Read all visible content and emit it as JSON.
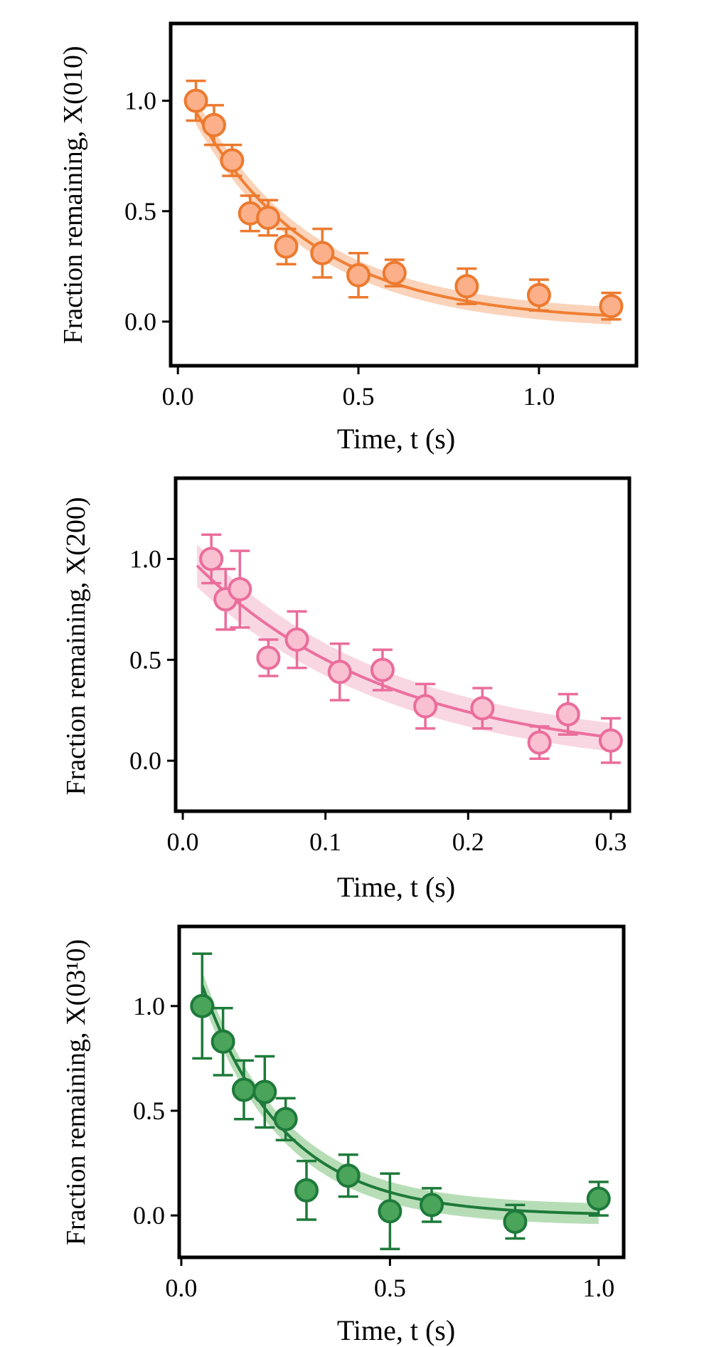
{
  "chart_data": [
    {
      "type": "scatter",
      "xlabel": "Time, t (s)",
      "ylabel": "Fraction remaining, X(010)",
      "xlim": [
        -0.02,
        1.27
      ],
      "ylim": [
        -0.2,
        1.35
      ],
      "xticks": [
        0.0,
        0.5,
        1.0
      ],
      "xtick_labels": [
        "0.0",
        "0.5",
        "1.0"
      ],
      "yticks": [
        0.0,
        0.5,
        1.0
      ],
      "ytick_labels": [
        "0.0",
        "0.5",
        "1.0"
      ],
      "grid": false,
      "colors": {
        "line": "#f07f34",
        "marker_fill": "#fbb08a",
        "marker_edge": "#ec7a2f",
        "band": "#f8c4a3"
      },
      "points": [
        {
          "x": 0.05,
          "y": 1.0,
          "err": 0.09
        },
        {
          "x": 0.1,
          "y": 0.89,
          "err": 0.09
        },
        {
          "x": 0.15,
          "y": 0.73,
          "err": 0.07
        },
        {
          "x": 0.2,
          "y": 0.49,
          "err": 0.08
        },
        {
          "x": 0.25,
          "y": 0.47,
          "err": 0.08
        },
        {
          "x": 0.3,
          "y": 0.34,
          "err": 0.08
        },
        {
          "x": 0.4,
          "y": 0.31,
          "err": 0.11
        },
        {
          "x": 0.5,
          "y": 0.21,
          "err": 0.1
        },
        {
          "x": 0.6,
          "y": 0.22,
          "err": 0.06
        },
        {
          "x": 0.8,
          "y": 0.16,
          "err": 0.08
        },
        {
          "x": 1.0,
          "y": 0.12,
          "err": 0.07
        },
        {
          "x": 1.2,
          "y": 0.07,
          "err": 0.06
        }
      ],
      "fit": {
        "x": [
          0.05,
          1.2
        ],
        "amplitude": 1.11,
        "rate": 3.1,
        "band_halfwidth": 0.04
      }
    },
    {
      "type": "scatter",
      "xlabel": "Time, t (s)",
      "ylabel": "Fraction remaining, X(200)",
      "xlim": [
        -0.005,
        0.313
      ],
      "ylim": [
        -0.25,
        1.4
      ],
      "xticks": [
        0.0,
        0.1,
        0.2,
        0.3
      ],
      "xtick_labels": [
        "0.0",
        "0.1",
        "0.2",
        "0.3"
      ],
      "yticks": [
        0.0,
        0.5,
        1.0
      ],
      "ytick_labels": [
        "0.0",
        "0.5",
        "1.0"
      ],
      "grid": false,
      "colors": {
        "line": "#ec6f9e",
        "marker_fill": "#f9c0d2",
        "marker_edge": "#ea6d9b",
        "band": "#f6c9d8"
      },
      "points": [
        {
          "x": 0.02,
          "y": 1.0,
          "err": 0.12
        },
        {
          "x": 0.03,
          "y": 0.8,
          "err": 0.15
        },
        {
          "x": 0.04,
          "y": 0.85,
          "err": 0.19
        },
        {
          "x": 0.06,
          "y": 0.51,
          "err": 0.09
        },
        {
          "x": 0.08,
          "y": 0.6,
          "err": 0.14
        },
        {
          "x": 0.11,
          "y": 0.44,
          "err": 0.14
        },
        {
          "x": 0.14,
          "y": 0.45,
          "err": 0.1
        },
        {
          "x": 0.17,
          "y": 0.27,
          "err": 0.11
        },
        {
          "x": 0.21,
          "y": 0.26,
          "err": 0.1
        },
        {
          "x": 0.25,
          "y": 0.09,
          "err": 0.08
        },
        {
          "x": 0.27,
          "y": 0.23,
          "err": 0.1
        },
        {
          "x": 0.3,
          "y": 0.1,
          "err": 0.11
        }
      ],
      "fit": {
        "x": [
          0.01,
          0.3
        ],
        "amplitude": 1.04,
        "rate": 7.3,
        "band_halfwidth": 0.07
      }
    },
    {
      "type": "scatter",
      "xlabel": "Time, t (s)",
      "ylabel": "Fraction remaining, X(03¹0)",
      "xlim": [
        -0.005,
        1.06
      ],
      "ylim": [
        -0.2,
        1.38
      ],
      "xticks": [
        0.0,
        0.5,
        1.0
      ],
      "xtick_labels": [
        "0.0",
        "0.5",
        "1.0"
      ],
      "yticks": [
        0.0,
        0.5,
        1.0
      ],
      "ytick_labels": [
        "0.0",
        "0.5",
        "1.0"
      ],
      "grid": false,
      "colors": {
        "line": "#1e7a3a",
        "marker_fill": "#4aa55a",
        "marker_edge": "#1e7a3a",
        "band": "#9fd19f"
      },
      "points": [
        {
          "x": 0.05,
          "y": 1.0,
          "err": 0.25
        },
        {
          "x": 0.1,
          "y": 0.83,
          "err": 0.16
        },
        {
          "x": 0.15,
          "y": 0.6,
          "err": 0.14
        },
        {
          "x": 0.2,
          "y": 0.59,
          "err": 0.17
        },
        {
          "x": 0.25,
          "y": 0.46,
          "err": 0.1
        },
        {
          "x": 0.3,
          "y": 0.12,
          "err": 0.14
        },
        {
          "x": 0.4,
          "y": 0.19,
          "err": 0.1
        },
        {
          "x": 0.5,
          "y": 0.02,
          "err": 0.18
        },
        {
          "x": 0.6,
          "y": 0.05,
          "err": 0.08
        },
        {
          "x": 0.8,
          "y": -0.03,
          "err": 0.08
        },
        {
          "x": 1.0,
          "y": 0.08,
          "err": 0.08
        }
      ],
      "fit": {
        "x": [
          0.05,
          1.0
        ],
        "amplitude": 1.42,
        "rate": 5.1,
        "band_halfwidth": 0.05
      }
    }
  ]
}
